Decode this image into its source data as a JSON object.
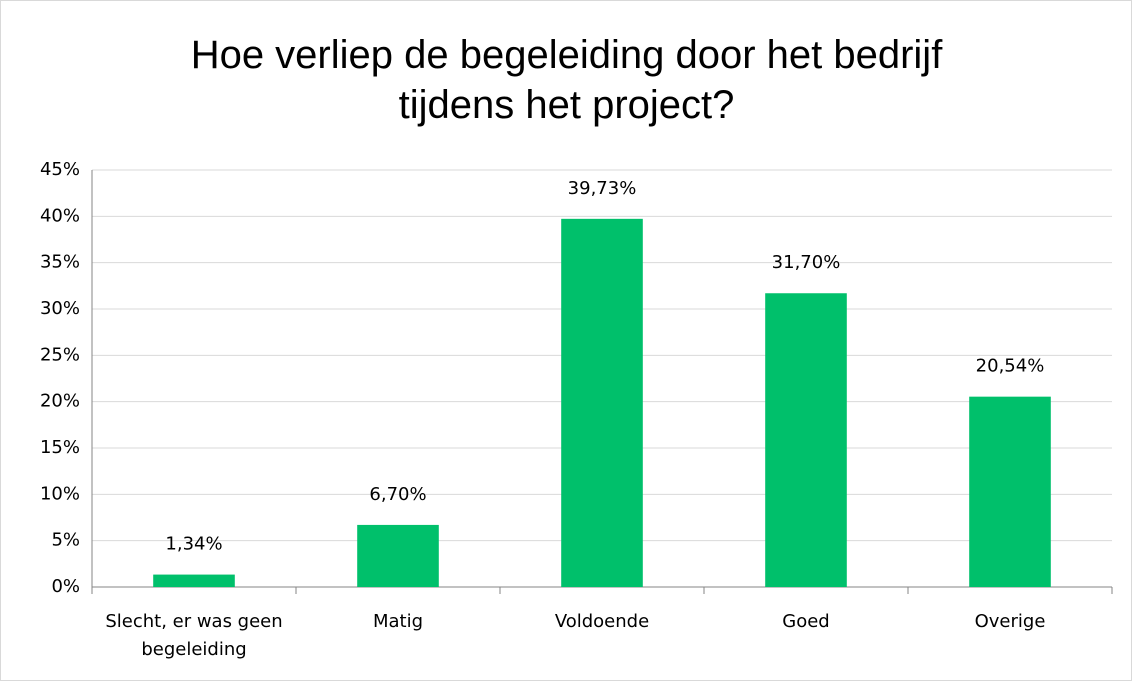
{
  "chart_data": {
    "type": "bar",
    "title": "Hoe verliep de begeleiding door het bedrijf tijdens het project?",
    "categories": [
      "Slecht, er was geen begeleiding",
      "Matig",
      "Voldoende",
      "Goed",
      "Overige"
    ],
    "values": [
      1.34,
      6.7,
      39.73,
      31.7,
      20.54
    ],
    "value_labels": [
      "1,34%",
      "6,70%",
      "39,73%",
      "31,70%",
      "20,54%"
    ],
    "color": "#00c06b",
    "ylim": [
      0,
      45
    ],
    "yticks": [
      {
        "value": 0,
        "label": "0%"
      },
      {
        "value": 5,
        "label": "5%"
      },
      {
        "value": 10,
        "label": "10%"
      },
      {
        "value": 15,
        "label": "15%"
      },
      {
        "value": 20,
        "label": "20%"
      },
      {
        "value": 25,
        "label": "25%"
      },
      {
        "value": 30,
        "label": "30%"
      },
      {
        "value": 35,
        "label": "35%"
      },
      {
        "value": 40,
        "label": "40%"
      },
      {
        "value": 45,
        "label": "45%"
      }
    ],
    "grid": true
  }
}
